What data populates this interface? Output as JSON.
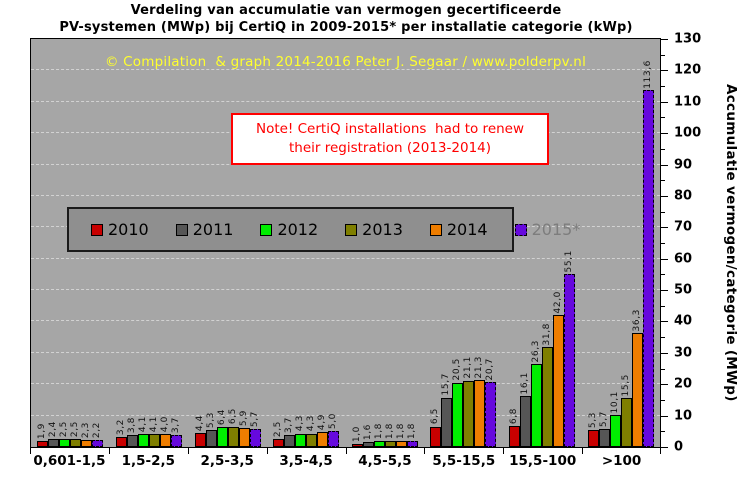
{
  "title": {
    "line1": "Verdeling van accumulatie van vermogen gecertificeerde",
    "line2": "PV-systemen (MWp) bij CertiQ in 2009-2015* per installatie categorie (kWp)"
  },
  "copyright": "© Compilation  & graph 2014-2016 Peter J. Segaar / www.polderpv.nl",
  "note": {
    "line1": "Note! CertiQ installations  had to renew",
    "line2": "their registration (2013-2014)"
  },
  "y_axis": {
    "title": "Accumulatie vermogen/categorie (MWp)",
    "min": 0,
    "max": 130,
    "major_step": 10,
    "minor_step": 5
  },
  "x_axis": {
    "unit": "kWp"
  },
  "chart_data": {
    "type": "bar",
    "title": "Verdeling van accumulatie van vermogen gecertificeerde PV-systemen (MWp) bij CertiQ in 2009-2015* per installatie categorie (kWp)",
    "categories": [
      "0,601-1,5",
      "1,5-2,5",
      "2,5-3,5",
      "3,5-4,5",
      "4,5-5,5",
      "5,5-15,5",
      "15,5-100",
      ">100"
    ],
    "series": [
      {
        "name": "2010",
        "color": "#c80000",
        "swatch_border": "solid",
        "name_color": "#000000",
        "values": [
          1.9,
          3.2,
          4.4,
          2.5,
          1.0,
          6.5,
          6.8,
          5.3
        ],
        "labels": [
          "1,9",
          "3,2",
          "4,4",
          "2,5",
          "1,0",
          "6,5",
          "6,8",
          "5,3"
        ]
      },
      {
        "name": "2011",
        "color": "#565656",
        "swatch_border": "solid",
        "name_color": "#000000",
        "values": [
          2.4,
          3.8,
          5.3,
          3.7,
          1.6,
          15.7,
          16.1,
          5.7
        ],
        "labels": [
          "2,4",
          "3,8",
          "5,3",
          "3,7",
          "1,6",
          "15,7",
          "16,1",
          "5,7"
        ]
      },
      {
        "name": "2012",
        "color": "#00ee00",
        "swatch_border": "solid",
        "name_color": "#000000",
        "values": [
          2.5,
          4.1,
          6.4,
          4.3,
          1.8,
          20.5,
          26.3,
          10.1
        ],
        "labels": [
          "2,5",
          "4,1",
          "6,4",
          "4,3",
          "1,8",
          "20,5",
          "26,3",
          "10,1"
        ]
      },
      {
        "name": "2013",
        "color": "#7f7f00",
        "swatch_border": "solid",
        "name_color": "#000000",
        "values": [
          2.5,
          4.1,
          6.5,
          4.3,
          1.8,
          21.1,
          31.8,
          15.5
        ],
        "labels": [
          "2,5",
          "4,1",
          "6,5",
          "4,3",
          "1,8",
          "21,1",
          "31,8",
          "15,5"
        ]
      },
      {
        "name": "2014",
        "color": "#ee7d00",
        "swatch_border": "solid",
        "name_color": "#000000",
        "values": [
          2.3,
          4.0,
          5.9,
          4.9,
          1.8,
          21.3,
          42.0,
          36.3
        ],
        "labels": [
          "2,3",
          "4,0",
          "5,9",
          "4,9",
          "1,8",
          "21,3",
          "42,0",
          "36,3"
        ]
      },
      {
        "name": "2015*",
        "color": "#6609dd",
        "swatch_border": "dashed",
        "name_color": "#7d7d7d",
        "values": [
          2.2,
          3.7,
          5.7,
          5.0,
          1.8,
          20.7,
          55.1,
          113.6
        ],
        "labels": [
          "2,2",
          "3,7",
          "5,7",
          "5,0",
          "1,8",
          "20,7",
          "55,1",
          "113,6"
        ]
      }
    ],
    "ylabel": "Accumulatie vermogen/categorie (MWp)",
    "ylim": [
      0,
      130
    ],
    "grid": true,
    "legend_position": "inside-upper-left",
    "colors": {
      "plot_background": "#a6a6a6",
      "legend_background": "#8f8f8f",
      "copyright_text": "#ffff2e",
      "note_text": "#ff0000"
    }
  }
}
